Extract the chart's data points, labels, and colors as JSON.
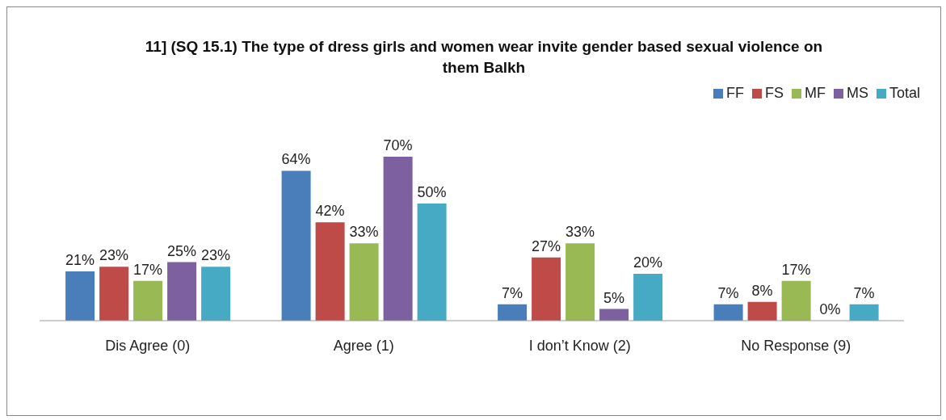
{
  "chart_data": {
    "type": "bar",
    "title": "11]   (SQ 15.1) The type of dress girls and women wear invite gender based sexual violence on them Balkh",
    "categories": [
      "Dis Agree (0)",
      "Agree (1)",
      "I don’t Know (2)",
      "No Response (9)"
    ],
    "series": [
      {
        "name": "FF",
        "color": "#4a7ebb",
        "values": [
          21,
          64,
          7,
          7
        ],
        "value_labels": [
          "21%",
          "64%",
          "7%",
          "7%"
        ]
      },
      {
        "name": "FS",
        "color": "#be4b48",
        "values": [
          23,
          42,
          27,
          8
        ],
        "value_labels": [
          "23%",
          "42%",
          "27%",
          "8%"
        ]
      },
      {
        "name": "MF",
        "color": "#98b954",
        "values": [
          17,
          33,
          33,
          17
        ],
        "value_labels": [
          "17%",
          "33%",
          "33%",
          "17%"
        ]
      },
      {
        "name": "MS",
        "color": "#7d60a0",
        "values": [
          25,
          70,
          5,
          0
        ],
        "value_labels": [
          "25%",
          "70%",
          "5%",
          "0%"
        ]
      },
      {
        "name": "Total",
        "color": "#46aac5",
        "values": [
          23,
          50,
          20,
          7
        ],
        "value_labels": [
          "23%",
          "50%",
          "20%",
          "7%"
        ]
      }
    ],
    "legend": "top right",
    "grid": false
  }
}
